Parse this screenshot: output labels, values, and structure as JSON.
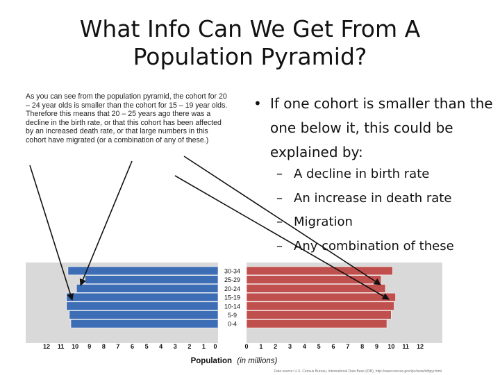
{
  "slide": {
    "title_line1": "What Info Can We Get From A",
    "title_line2": "Population Pyramid?"
  },
  "caption": {
    "text": "As you can see from the population pyramid, the cohort for 20 – 24 year olds is smaller than the cohort for 15 – 19 year olds.  Therefore this means that 20 – 25 years ago there was a decline in the birth rate, or that this cohort has been affected by an increased death rate, or that large numbers in this cohort have migrated (or a combination of any of these.)"
  },
  "bullets": {
    "marker": "•",
    "main": "If one cohort is smaller than the one below it, this could be explained by:",
    "dash": "–",
    "sub": [
      "A decline in birth rate",
      "An increase in death rate",
      "Migration",
      "Any combination of these"
    ]
  },
  "chart_data": {
    "type": "bar",
    "orientation": "horizontal-pyramid",
    "categories": [
      "0-4",
      "5-9",
      "10-14",
      "15-19",
      "20-24",
      "25-29",
      "30-34"
    ],
    "series": [
      {
        "values": [
          10.3,
          10.4,
          10.6,
          10.6,
          9.9,
          9.3,
          10.5
        ],
        "color": "#3d6db4"
      },
      {
        "values": [
          9.7,
          10.0,
          10.2,
          10.3,
          9.6,
          9.3,
          10.1
        ],
        "color": "#c0504d"
      }
    ],
    "x_ticks_left": [
      "12",
      "11",
      "10",
      "9",
      "8",
      "7",
      "6",
      "5",
      "4",
      "3",
      "2",
      "1",
      "0"
    ],
    "x_ticks_right": [
      "0",
      "1",
      "2",
      "3",
      "4",
      "5",
      "6",
      "7",
      "8",
      "9",
      "10",
      "11",
      "12"
    ],
    "xlabel": "Population",
    "xlabel_unit": "(in millions)",
    "xlim": [
      0,
      12
    ],
    "source": "Data source: U.S. Census Bureau, International Data Base (IDB), http://www.census.gov/ipc/www/idbpyr.html",
    "background_color": "#d9d9d9"
  }
}
